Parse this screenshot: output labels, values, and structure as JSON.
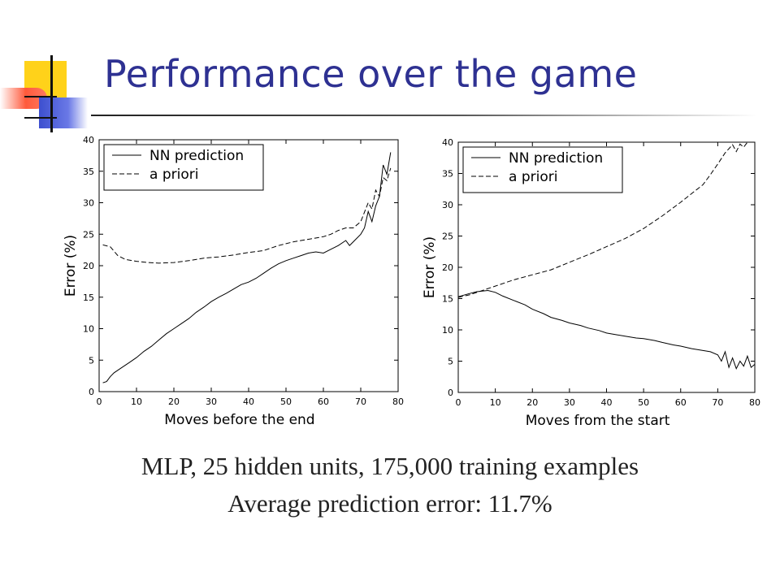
{
  "slide": {
    "title": "Performance over the game",
    "caption_line1": "MLP, 25 hidden units, 175,000 training examples",
    "caption_line2": "Average prediction error: 11.7%"
  },
  "colors": {
    "title": "#2e3192",
    "deco_yellow": "#ffd21a",
    "deco_red": "#ff5a3c",
    "deco_blue": "#3d4fcf"
  },
  "chart_data": [
    {
      "type": "line",
      "xlabel": "Moves before the end",
      "ylabel": "Error (%)",
      "xlim": [
        0,
        80
      ],
      "ylim": [
        0,
        40
      ],
      "xticks": [
        0,
        10,
        20,
        30,
        40,
        50,
        60,
        70,
        80
      ],
      "yticks": [
        0,
        5,
        10,
        15,
        20,
        25,
        30,
        35,
        40
      ],
      "grid": false,
      "legend_position": "top-left",
      "series": [
        {
          "name": "NN prediction",
          "style": "solid",
          "x": [
            1,
            2,
            3,
            4,
            6,
            8,
            10,
            12,
            14,
            16,
            18,
            20,
            22,
            24,
            26,
            28,
            30,
            32,
            34,
            36,
            38,
            40,
            42,
            44,
            46,
            48,
            50,
            52,
            54,
            56,
            58,
            60,
            62,
            64,
            66,
            67,
            68,
            70,
            71,
            72,
            73,
            74,
            75,
            76,
            77,
            78
          ],
          "y": [
            1.4,
            1.6,
            2.4,
            3.0,
            3.8,
            4.6,
            5.4,
            6.4,
            7.2,
            8.2,
            9.2,
            10.0,
            10.8,
            11.6,
            12.6,
            13.4,
            14.3,
            15.0,
            15.6,
            16.3,
            17.0,
            17.4,
            18.0,
            18.8,
            19.6,
            20.3,
            20.8,
            21.2,
            21.6,
            22.0,
            22.2,
            22.0,
            22.6,
            23.2,
            24.0,
            23.2,
            23.8,
            25.0,
            26.0,
            28.6,
            27.0,
            29.5,
            31.0,
            36.0,
            34.5,
            38.0
          ]
        },
        {
          "name": "a priori",
          "style": "dashed",
          "x": [
            1,
            3,
            5,
            7,
            10,
            13,
            16,
            20,
            24,
            28,
            32,
            36,
            40,
            44,
            48,
            52,
            56,
            60,
            62,
            64,
            66,
            68,
            70,
            71,
            72,
            73,
            74,
            75,
            76,
            77,
            78
          ],
          "y": [
            23.3,
            23.0,
            21.6,
            21.0,
            20.7,
            20.5,
            20.4,
            20.5,
            20.8,
            21.2,
            21.4,
            21.7,
            22.1,
            22.4,
            23.2,
            23.8,
            24.2,
            24.6,
            25.0,
            25.6,
            26.0,
            26.0,
            27.0,
            28.5,
            30.0,
            29.0,
            32.0,
            31.0,
            34.0,
            33.5,
            35.5
          ]
        }
      ]
    },
    {
      "type": "line",
      "xlabel": "Moves from the start",
      "ylabel": "Error (%)",
      "xlim": [
        0,
        80
      ],
      "ylim": [
        0,
        40
      ],
      "xticks": [
        0,
        10,
        20,
        30,
        40,
        50,
        60,
        70,
        80
      ],
      "yticks": [
        0,
        5,
        10,
        15,
        20,
        25,
        30,
        35,
        40
      ],
      "grid": false,
      "legend_position": "top-left",
      "series": [
        {
          "name": "NN prediction",
          "style": "solid",
          "x": [
            0,
            3,
            5,
            8,
            10,
            12,
            15,
            18,
            20,
            23,
            25,
            28,
            30,
            33,
            35,
            38,
            40,
            43,
            45,
            48,
            50,
            53,
            55,
            58,
            60,
            63,
            65,
            68,
            70,
            71,
            72,
            73,
            74,
            75,
            76,
            77,
            78,
            79,
            80
          ],
          "y": [
            15.3,
            15.8,
            16.1,
            16.3,
            16.0,
            15.4,
            14.7,
            14.0,
            13.3,
            12.6,
            12.0,
            11.5,
            11.1,
            10.7,
            10.3,
            9.9,
            9.5,
            9.2,
            9.0,
            8.7,
            8.6,
            8.3,
            8.0,
            7.6,
            7.4,
            7.0,
            6.8,
            6.5,
            6.0,
            5.0,
            6.5,
            4.0,
            5.5,
            3.8,
            5.0,
            4.2,
            5.8,
            4.0,
            4.5
          ]
        },
        {
          "name": "a priori",
          "style": "dashed",
          "x": [
            0,
            3,
            6,
            10,
            15,
            20,
            25,
            30,
            35,
            40,
            45,
            50,
            55,
            60,
            63,
            66,
            68,
            70,
            72,
            74,
            75,
            76,
            77,
            78,
            80
          ],
          "y": [
            15.2,
            15.6,
            16.2,
            17.0,
            18.0,
            18.8,
            19.6,
            20.8,
            22.0,
            23.3,
            24.6,
            26.2,
            28.2,
            30.4,
            31.8,
            33.2,
            34.8,
            36.5,
            38.3,
            39.6,
            38.5,
            39.7,
            39.2,
            40.0,
            40.0
          ]
        }
      ]
    }
  ]
}
